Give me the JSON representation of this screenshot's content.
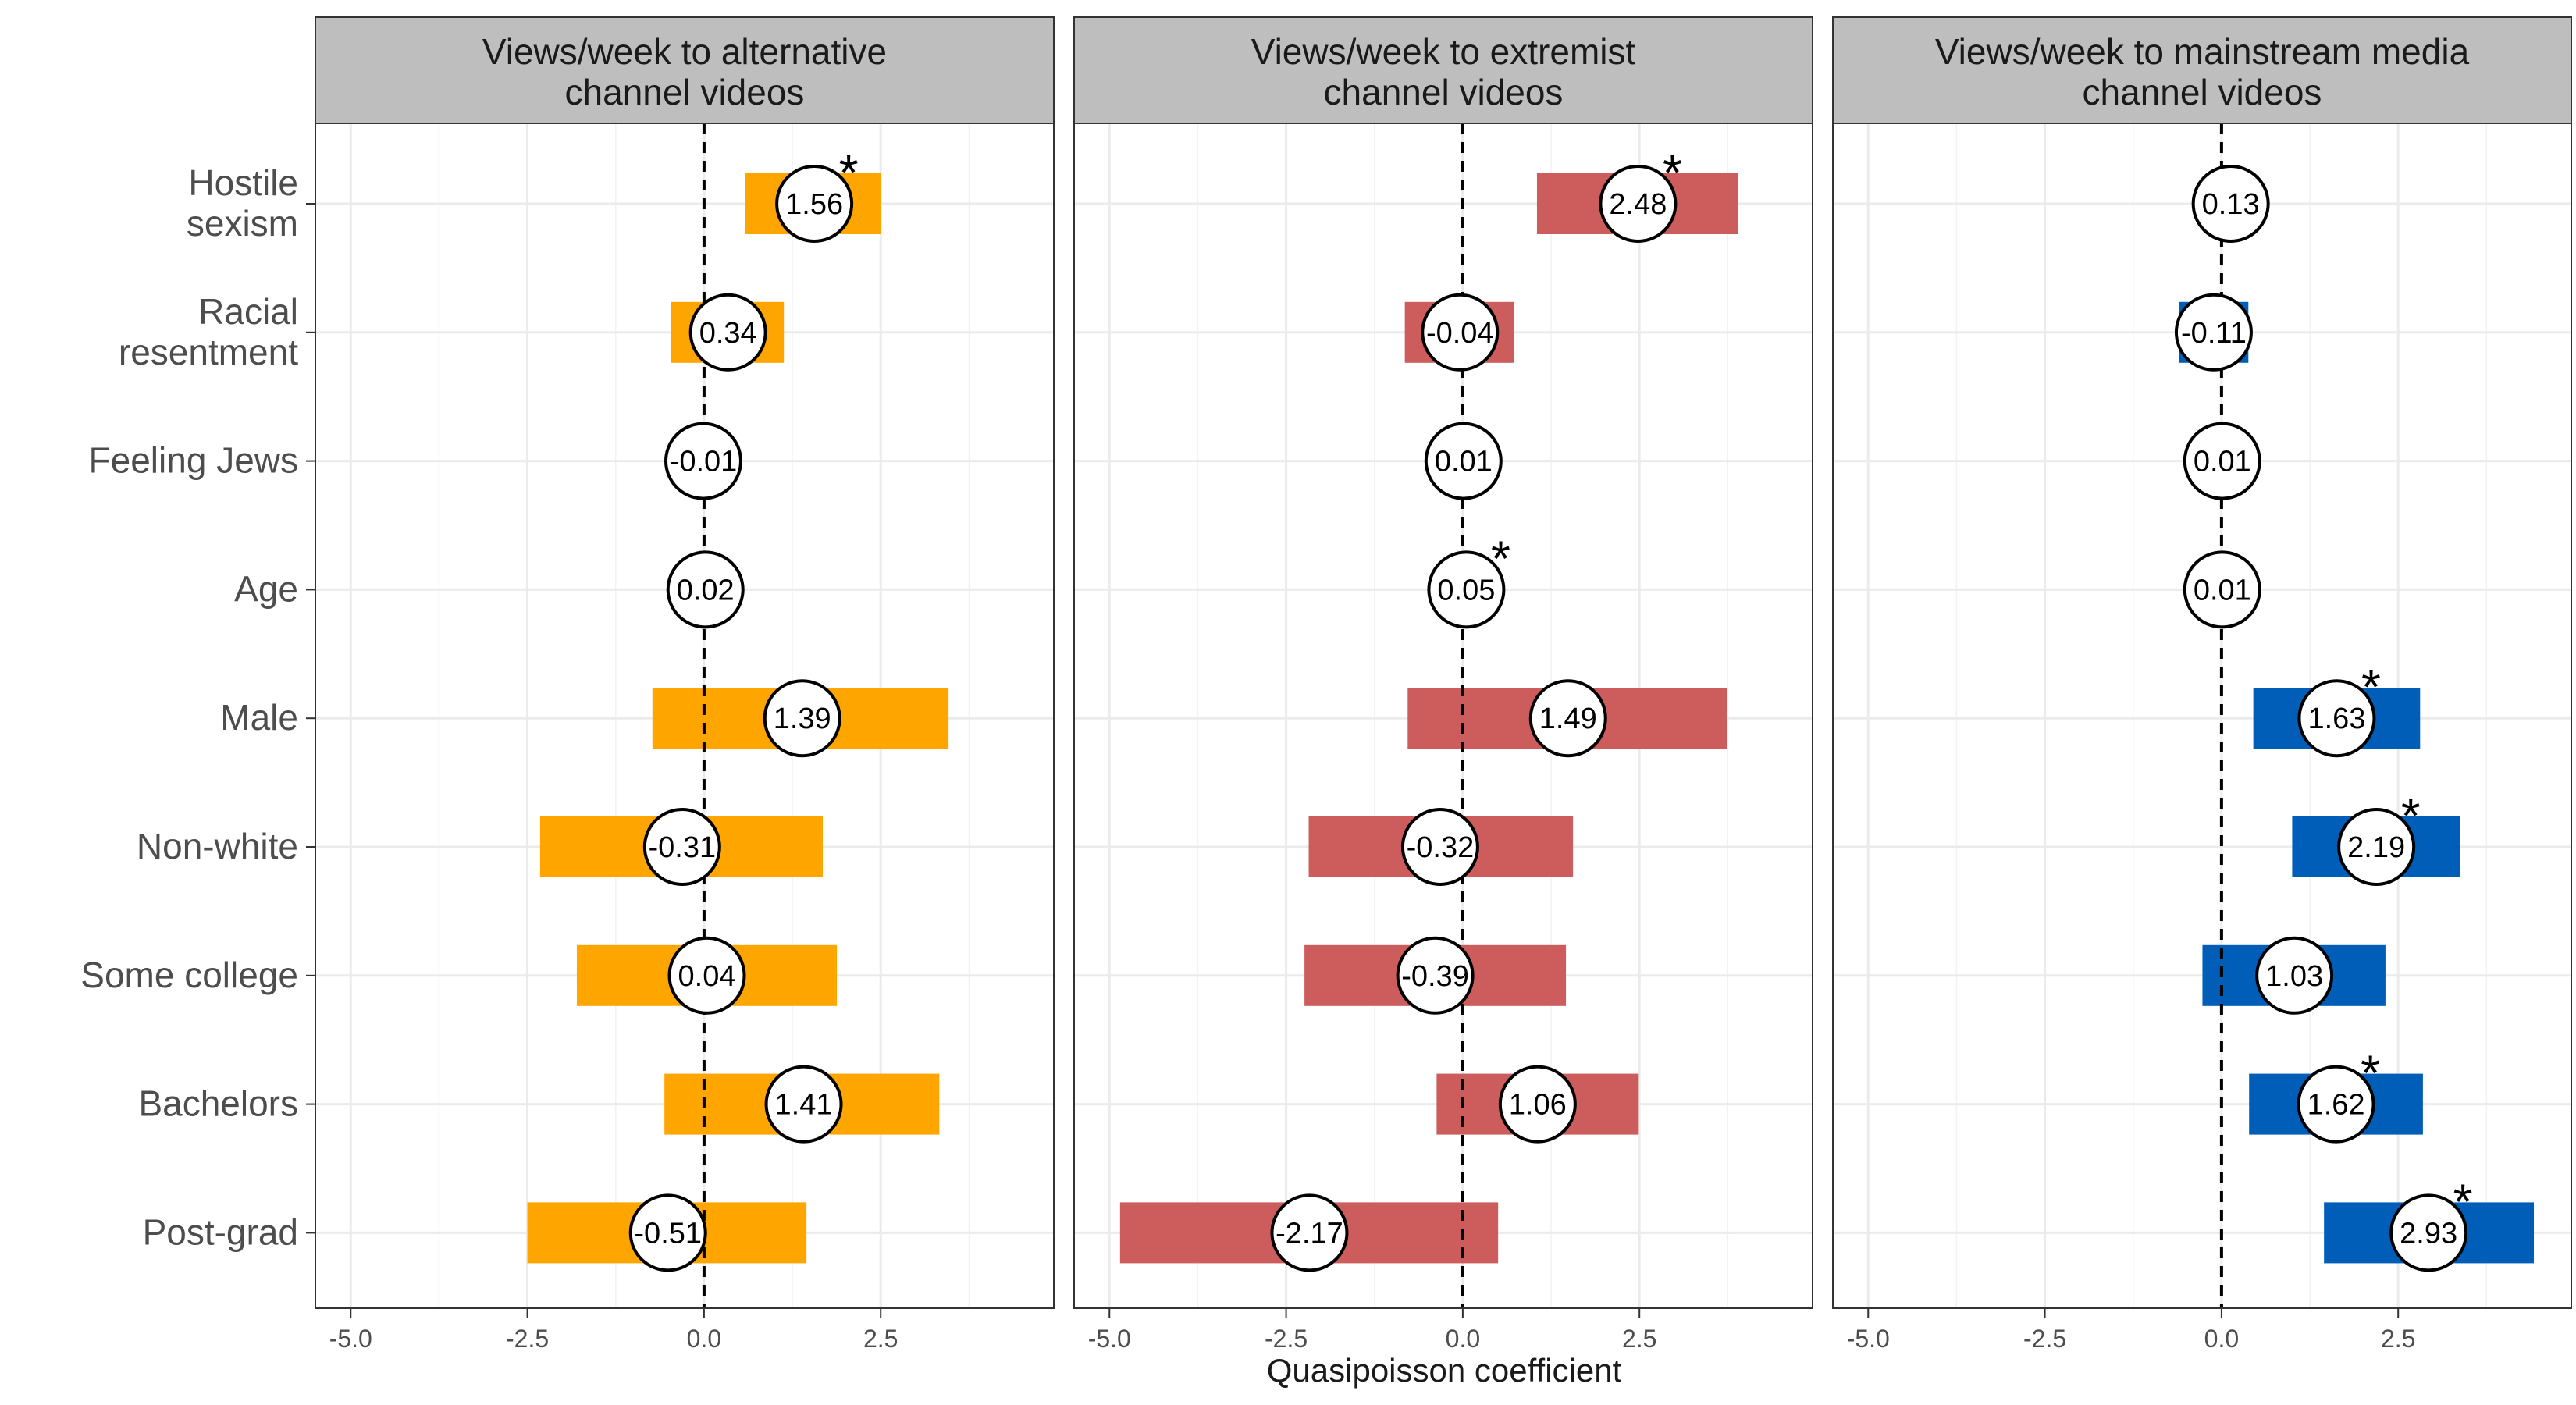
{
  "chart_data": {
    "type": "bar",
    "xlabel": "Quasipoisson coefficient",
    "xlim": [
      -5.5,
      4.95
    ],
    "xticks": [
      -5.0,
      -2.5,
      0.0,
      2.5
    ],
    "xtick_labels": [
      "-5.0",
      "-2.5",
      "0.0",
      "2.5"
    ],
    "reference_line": 0,
    "grid": true,
    "categories": [
      "Hostile sexism",
      "Racial resentment",
      "Feeling Jews",
      "Age",
      "Male",
      "Non-white",
      "Some college",
      "Bachelors",
      "Post-grad"
    ],
    "category_labels": [
      [
        "Hostile",
        "sexism"
      ],
      [
        "Racial",
        "resentment"
      ],
      [
        "Feeling Jews"
      ],
      [
        "Age"
      ],
      [
        "Male"
      ],
      [
        "Non-white"
      ],
      [
        "Some college"
      ],
      [
        "Bachelors"
      ],
      [
        "Post-grad"
      ]
    ],
    "panels": [
      {
        "title": [
          "Views/week to alternative",
          "channel videos"
        ],
        "color": "#FFA500",
        "estimates": [
          1.56,
          0.34,
          -0.01,
          0.02,
          1.39,
          -0.31,
          0.04,
          1.41,
          -0.51
        ],
        "labels": [
          "1.56",
          "0.34",
          "-0.01",
          "0.02",
          "1.39",
          "-0.31",
          "0.04",
          "1.41",
          "-0.51"
        ],
        "ci_low": [
          0.58,
          -0.47,
          -0.03,
          -0.01,
          -0.73,
          -2.32,
          -1.8,
          -0.56,
          -2.5
        ],
        "ci_high": [
          2.5,
          1.13,
          0.01,
          0.04,
          3.46,
          1.68,
          1.88,
          3.33,
          1.45
        ],
        "significant": [
          true,
          false,
          false,
          false,
          false,
          false,
          false,
          false,
          false
        ]
      },
      {
        "title": [
          "Views/week to extremist",
          "channel videos"
        ],
        "color": "#CD5C5C",
        "estimates": [
          2.48,
          -0.04,
          0.01,
          0.05,
          1.49,
          -0.32,
          -0.39,
          1.06,
          -2.17
        ],
        "labels": [
          "2.48",
          "-0.04",
          "0.01",
          "0.05",
          "1.49",
          "-0.32",
          "-0.39",
          "1.06",
          "-2.17"
        ],
        "ci_low": [
          1.05,
          -0.82,
          -0.01,
          0.02,
          -0.78,
          -2.18,
          -2.24,
          -0.37,
          -4.85
        ],
        "ci_high": [
          3.9,
          0.72,
          0.03,
          0.08,
          3.74,
          1.56,
          1.46,
          2.49,
          0.5
        ],
        "significant": [
          true,
          false,
          false,
          true,
          false,
          false,
          false,
          false,
          false
        ]
      },
      {
        "title": [
          "Views/week to mainstream media",
          "channel videos"
        ],
        "color": "#005EB8",
        "estimates": [
          0.13,
          -0.11,
          0.01,
          0.01,
          1.63,
          2.19,
          1.03,
          1.62,
          2.93
        ],
        "labels": [
          "0.13",
          "-0.11",
          "0.01",
          "0.01",
          "1.63",
          "2.19",
          "1.03",
          "1.62",
          "2.93"
        ],
        "ci_low": [
          0.08,
          -0.6,
          -0.01,
          0.0,
          0.45,
          1.0,
          -0.27,
          0.39,
          1.45
        ],
        "ci_high": [
          0.18,
          0.38,
          0.03,
          0.02,
          2.81,
          3.38,
          2.32,
          2.85,
          4.42
        ],
        "significant": [
          false,
          false,
          false,
          false,
          true,
          true,
          false,
          true,
          true
        ]
      }
    ],
    "significance_marker": "*"
  }
}
